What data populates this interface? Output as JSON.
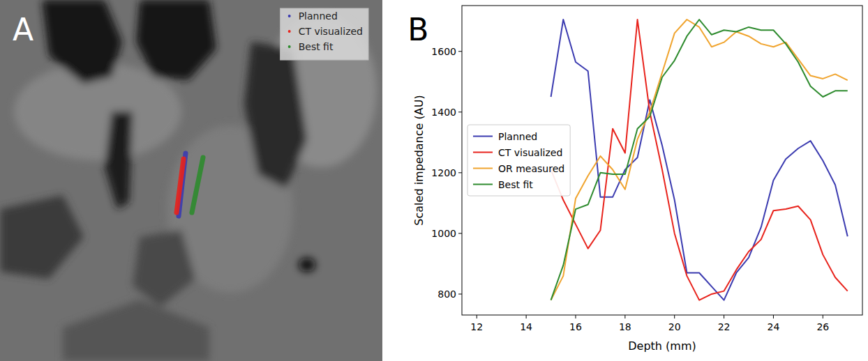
{
  "image_panel": {
    "letter": "A",
    "legend": [
      {
        "name": "Planned",
        "color": "#3b3bb0"
      },
      {
        "name": "CT visualized",
        "color": "#e8231c"
      },
      {
        "name": "Best fit",
        "color": "#2e8b2e"
      }
    ]
  },
  "chart_data": {
    "type": "line",
    "letter": "B",
    "xlabel": "Depth (mm)",
    "ylabel": "Scaled impedance (AU)",
    "xlim": [
      11.4,
      27.6
    ],
    "ylim": [
      731,
      1751
    ],
    "xticks": [
      12,
      14,
      16,
      18,
      20,
      22,
      24,
      26
    ],
    "yticks": [
      800,
      1000,
      1200,
      1400,
      1600
    ],
    "legend": "center left",
    "grid": false,
    "x": [
      15,
      15.5,
      16,
      16.5,
      17,
      17.5,
      18,
      18.5,
      19,
      19.5,
      20,
      20.5,
      21,
      21.5,
      22,
      22.5,
      23,
      23.5,
      24,
      24.5,
      25,
      25.5,
      26,
      26.5,
      27
    ],
    "series": [
      {
        "name": "Planned",
        "color": "#3b3bb0",
        "values": [
          1450,
          1705,
          1565,
          1535,
          1120,
          1120,
          1210,
          1250,
          1440,
          1290,
          1110,
          870,
          870,
          825,
          780,
          870,
          920,
          1020,
          1175,
          1245,
          1280,
          1305,
          1240,
          1160,
          990
        ]
      },
      {
        "name": "CT visualized",
        "color": "#e8231c",
        "values": [
          1210,
          1110,
          1030,
          950,
          1010,
          1345,
          1265,
          1705,
          1400,
          1210,
          1000,
          860,
          780,
          800,
          810,
          880,
          940,
          980,
          1075,
          1080,
          1090,
          1045,
          930,
          855,
          810
        ]
      },
      {
        "name": "OR measured",
        "color": "#f0a42e",
        "values": [
          780,
          860,
          1115,
          1190,
          1255,
          1210,
          1145,
          1310,
          1400,
          1530,
          1660,
          1705,
          1680,
          1615,
          1630,
          1665,
          1650,
          1625,
          1615,
          1630,
          1575,
          1520,
          1510,
          1525,
          1505
        ]
      },
      {
        "name": "Best fit",
        "color": "#2e8b2e",
        "values": [
          780,
          895,
          1080,
          1095,
          1200,
          1195,
          1195,
          1345,
          1385,
          1515,
          1570,
          1650,
          1705,
          1655,
          1670,
          1665,
          1680,
          1670,
          1670,
          1625,
          1565,
          1485,
          1450,
          1470,
          1470
        ]
      }
    ]
  }
}
